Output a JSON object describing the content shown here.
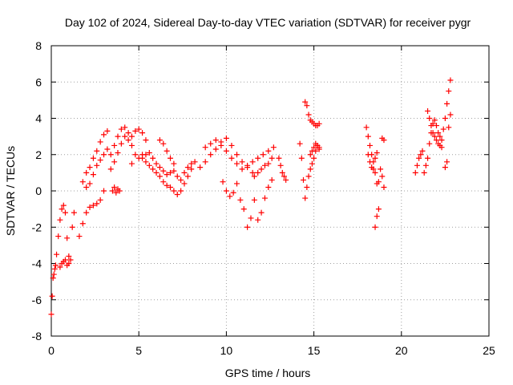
{
  "chart_data": {
    "type": "scatter",
    "title": "Day 102 of 2024, Sidereal Day-to-day VTEC variation (SDTVAR) for receiver pygr",
    "xlabel": "GPS time / hours",
    "ylabel": "SDTVAR / TECUs",
    "xlim": [
      0,
      25
    ],
    "ylim": [
      -8,
      8
    ],
    "xticks": [
      0,
      5,
      10,
      15,
      20,
      25
    ],
    "yticks": [
      -8,
      -6,
      -4,
      -2,
      0,
      2,
      4,
      6,
      8
    ],
    "grid": true,
    "marker": "+",
    "color": "#ff0000",
    "segments": [
      {
        "x": [
          0.0,
          0.05,
          0.1,
          0.15,
          0.2,
          0.25
        ],
        "y": [
          -6.8,
          -5.8,
          -4.8,
          -4.6,
          -4.3,
          -4.1
        ]
      },
      {
        "x": [
          0.3,
          0.4,
          0.5,
          0.6,
          0.7,
          0.8,
          0.9,
          1.0,
          1.1,
          1.2,
          1.3
        ],
        "y": [
          -3.5,
          -2.5,
          -1.6,
          -1.0,
          -0.8,
          -1.2,
          -2.6,
          -4.0,
          -3.8,
          -2.0,
          -1.2
        ]
      },
      {
        "x": [
          0.5,
          0.6,
          0.7,
          0.8,
          0.9,
          1.0
        ],
        "y": [
          -4.2,
          -4.0,
          -3.9,
          -3.8,
          -4.1,
          -3.6
        ]
      },
      {
        "x": [
          1.6,
          1.8,
          2.0,
          2.2,
          2.4,
          2.6,
          2.8,
          3.0
        ],
        "y": [
          -2.5,
          -1.8,
          -1.2,
          -0.9,
          -0.8,
          -0.7,
          -0.5,
          0.0
        ]
      },
      {
        "x": [
          1.8,
          2.0,
          2.2,
          2.4,
          2.6,
          2.8,
          3.0,
          3.2
        ],
        "y": [
          0.5,
          1.0,
          1.3,
          1.8,
          2.2,
          2.7,
          3.1,
          3.3
        ]
      },
      {
        "x": [
          2.0,
          2.2,
          2.4,
          2.6,
          2.8,
          3.0,
          3.2
        ],
        "y": [
          0.2,
          0.4,
          0.9,
          1.4,
          1.7,
          2.0,
          2.3
        ]
      },
      {
        "x": [
          3.5,
          3.6,
          3.7,
          3.8,
          3.9
        ],
        "y": [
          0.0,
          0.2,
          -0.1,
          0.1,
          0.0
        ]
      },
      {
        "x": [
          3.4,
          3.6,
          3.8,
          4.0,
          4.2,
          4.4,
          4.6,
          4.8,
          5.0,
          5.2
        ],
        "y": [
          2.0,
          2.5,
          3.0,
          3.4,
          3.5,
          3.2,
          2.5,
          2.0,
          1.8,
          2.0
        ]
      },
      {
        "x": [
          3.4,
          3.6,
          3.8,
          4.0,
          4.2,
          4.4,
          4.6
        ],
        "y": [
          1.2,
          1.6,
          2.1,
          2.6,
          3.0,
          2.8,
          1.5
        ]
      },
      {
        "x": [
          4.6,
          4.8,
          5.0,
          5.2,
          5.4
        ],
        "y": [
          3.0,
          3.3,
          3.4,
          3.2,
          2.8
        ]
      },
      {
        "x": [
          5.2,
          5.4,
          5.6,
          5.8,
          6.0,
          6.2,
          6.4,
          6.6,
          6.8,
          7.0,
          7.2,
          7.4,
          7.6,
          7.8,
          8.0,
          8.2
        ],
        "y": [
          1.8,
          1.6,
          1.4,
          1.2,
          1.0,
          0.8,
          0.5,
          0.3,
          0.2,
          0.0,
          -0.2,
          0.0,
          0.4,
          0.8,
          1.2,
          1.6
        ]
      },
      {
        "x": [
          5.4,
          5.6,
          5.8,
          6.0,
          6.2,
          6.4,
          6.6,
          6.8,
          7.0,
          7.2,
          7.4,
          7.6,
          7.8,
          8.0
        ],
        "y": [
          2.0,
          2.1,
          1.8,
          1.5,
          1.3,
          1.1,
          0.9,
          1.0,
          1.1,
          0.8,
          0.6,
          1.0,
          1.3,
          1.5
        ]
      },
      {
        "x": [
          6.2,
          6.4,
          6.6,
          6.8,
          7.0
        ],
        "y": [
          2.8,
          2.6,
          2.2,
          1.8,
          1.5
        ]
      },
      {
        "x": [
          8.5,
          8.8,
          9.1,
          9.4,
          9.7,
          10.0,
          10.3,
          10.6,
          10.9,
          11.2,
          11.5,
          11.8,
          12.1,
          12.4,
          12.7
        ],
        "y": [
          1.3,
          1.6,
          2.0,
          2.3,
          2.5,
          2.2,
          1.8,
          1.5,
          1.2,
          1.4,
          1.6,
          1.8,
          2.0,
          2.2,
          2.4
        ]
      },
      {
        "x": [
          8.8,
          9.1,
          9.4,
          9.7,
          10.0,
          10.3,
          10.6,
          10.9,
          11.2,
          11.5
        ],
        "y": [
          2.4,
          2.6,
          2.8,
          2.7,
          2.9,
          2.5,
          2.0,
          1.6,
          1.3,
          1.0
        ]
      },
      {
        "x": [
          9.8,
          10.0,
          10.2,
          10.4,
          10.6
        ],
        "y": [
          0.5,
          0.0,
          -0.3,
          -0.1,
          0.4
        ]
      },
      {
        "x": [
          10.8,
          11.0,
          11.2,
          11.4,
          11.6,
          11.8,
          12.0,
          12.2,
          12.4,
          12.6
        ],
        "y": [
          -0.5,
          -1.0,
          -2.0,
          -1.5,
          -0.5,
          -1.6,
          -1.2,
          -0.4,
          0.2,
          0.6
        ]
      },
      {
        "x": [
          11.6,
          11.8,
          12.0,
          12.2,
          12.4,
          12.6
        ],
        "y": [
          0.8,
          1.0,
          1.2,
          1.4,
          1.5,
          1.8
        ]
      },
      {
        "x": [
          13.0,
          13.1,
          13.2,
          13.3,
          13.4
        ],
        "y": [
          1.8,
          1.4,
          1.0,
          0.8,
          0.6
        ]
      },
      {
        "x": [
          14.2,
          14.3,
          14.4,
          14.5,
          14.6,
          14.7,
          14.8,
          14.9,
          15.0,
          15.1,
          15.2,
          15.3
        ],
        "y": [
          2.6,
          1.8,
          0.6,
          -0.4,
          0.2,
          0.8,
          1.2,
          1.5,
          1.8,
          2.2,
          2.5,
          2.4
        ]
      },
      {
        "x": [
          14.5,
          14.6,
          14.7,
          14.8,
          14.9,
          15.0,
          15.1,
          15.2,
          15.3
        ],
        "y": [
          4.9,
          4.7,
          4.2,
          3.9,
          3.8,
          3.7,
          3.6,
          3.6,
          3.7
        ]
      },
      {
        "x": [
          14.8,
          14.9,
          15.0,
          15.1,
          15.2,
          15.3
        ],
        "y": [
          2.0,
          2.2,
          2.4,
          2.6,
          2.5,
          2.3
        ]
      },
      {
        "x": [
          18.0,
          18.1,
          18.2,
          18.3,
          18.4,
          18.5,
          18.6,
          18.7
        ],
        "y": [
          3.5,
          3.0,
          2.5,
          2.0,
          1.6,
          1.0,
          0.4,
          0.5
        ]
      },
      {
        "x": [
          18.1,
          18.2,
          18.3,
          18.4,
          18.5,
          18.6
        ],
        "y": [
          2.0,
          1.6,
          1.3,
          1.2,
          1.8,
          2.1
        ]
      },
      {
        "x": [
          18.5,
          18.6,
          18.7
        ],
        "y": [
          -2.0,
          -1.4,
          -1.0
        ]
      },
      {
        "x": [
          18.8,
          18.9,
          19.0
        ],
        "y": [
          1.2,
          0.8,
          0.2
        ]
      },
      {
        "x": [
          18.9,
          19.0
        ],
        "y": [
          2.9,
          2.8
        ]
      },
      {
        "x": [
          20.8,
          20.9,
          21.0,
          21.1,
          21.2
        ],
        "y": [
          1.0,
          1.4,
          1.8,
          2.0,
          2.2
        ]
      },
      {
        "x": [
          21.3,
          21.4,
          21.5,
          21.6,
          21.7,
          21.8,
          21.9,
          22.0,
          22.1,
          22.2
        ],
        "y": [
          1.0,
          1.4,
          1.8,
          2.6,
          3.2,
          3.7,
          3.9,
          3.6,
          3.2,
          3.0
        ]
      },
      {
        "x": [
          21.5,
          21.6,
          21.7,
          21.8,
          21.9,
          22.0,
          22.1,
          22.2,
          22.3
        ],
        "y": [
          4.4,
          4.0,
          3.6,
          3.2,
          3.0,
          2.8,
          2.6,
          2.5,
          2.4
        ]
      },
      {
        "x": [
          22.3,
          22.4,
          22.5,
          22.6,
          22.7,
          22.8
        ],
        "y": [
          2.8,
          3.4,
          4.0,
          4.8,
          5.5,
          6.1
        ]
      },
      {
        "x": [
          22.5,
          22.6,
          22.7,
          22.8
        ],
        "y": [
          1.3,
          1.6,
          3.5,
          4.2
        ]
      }
    ]
  }
}
